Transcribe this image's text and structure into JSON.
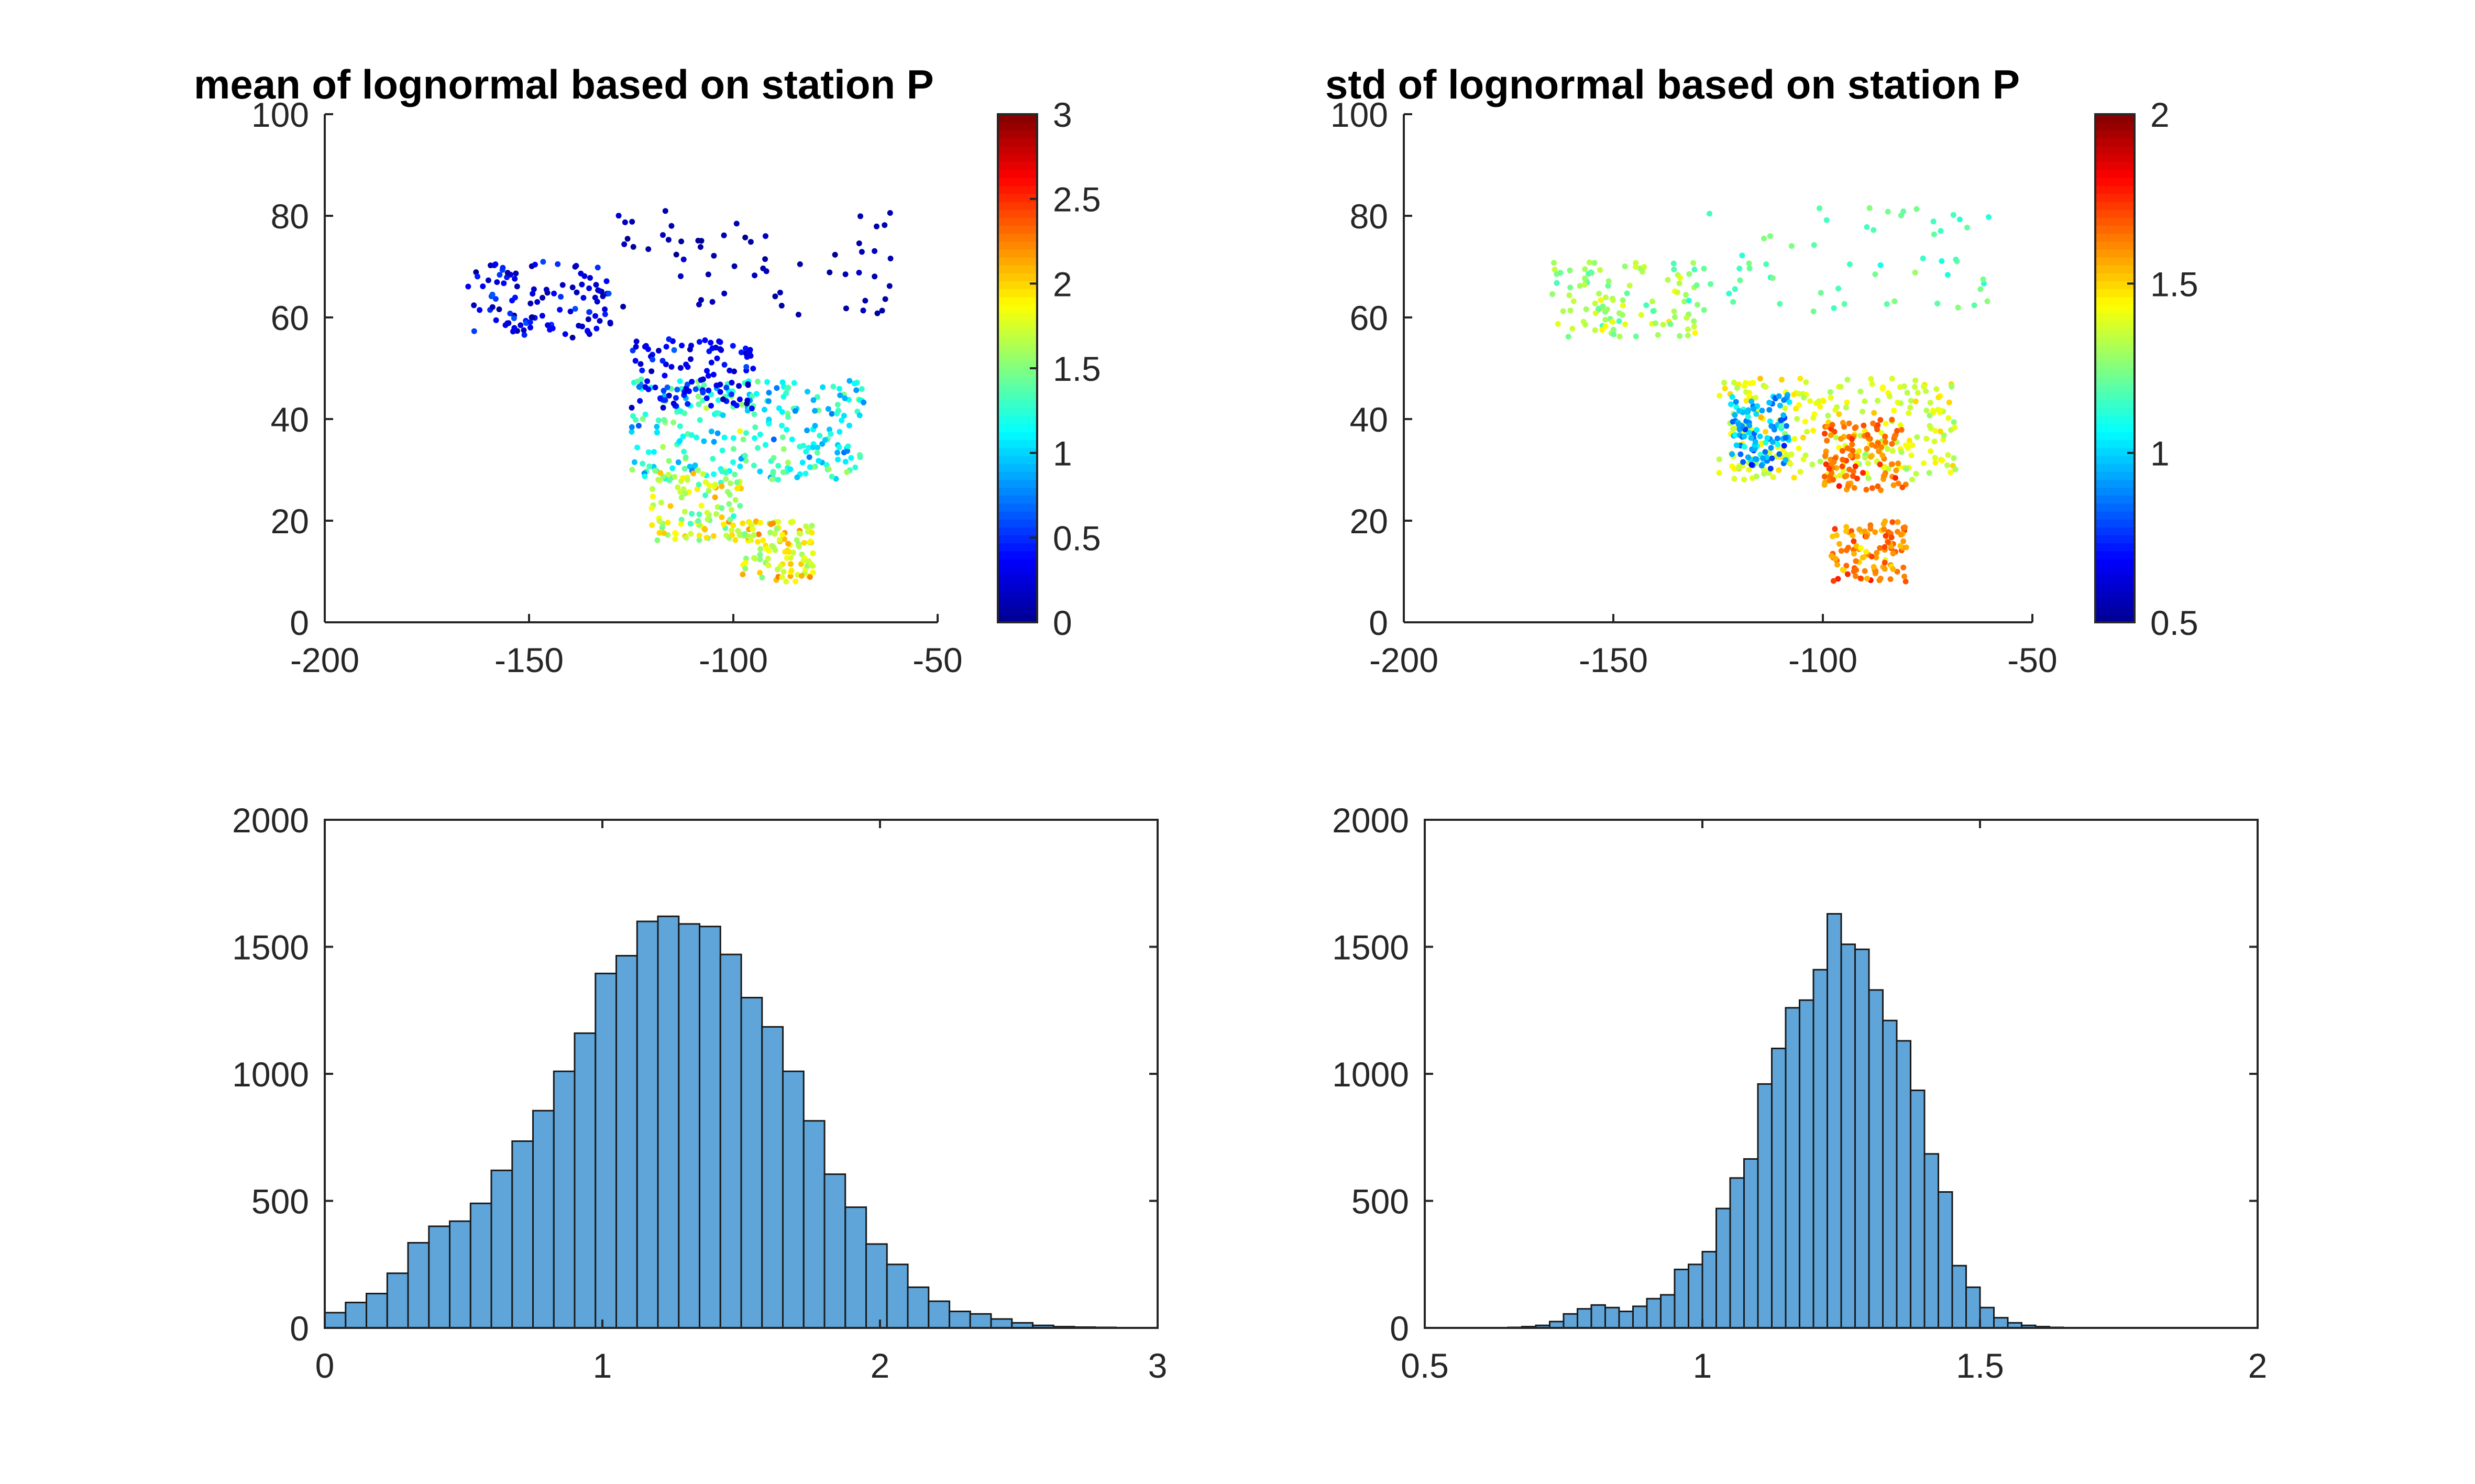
{
  "figure": {
    "colormap": "jet",
    "colormap_stops": [
      "#00008f",
      "#0000ff",
      "#0080ff",
      "#00ffff",
      "#80ff80",
      "#ffff00",
      "#ff8000",
      "#ff0000",
      "#800000"
    ],
    "bar_fill": "#5fa5d9",
    "bar_edge": "#1a1a1a"
  },
  "chart_data": [
    {
      "type": "scatter",
      "title": "mean of lognormal based on station P",
      "xlim": [
        -200,
        -50
      ],
      "ylim": [
        0,
        100
      ],
      "xticks": [
        -200,
        -150,
        -100,
        -50
      ],
      "yticks": [
        0,
        20,
        40,
        60,
        80,
        100
      ],
      "colorbar": {
        "colormap": "jet",
        "clim": [
          0,
          3
        ],
        "ticks": [
          0,
          0.5,
          1,
          1.5,
          2,
          2.5,
          3
        ],
        "tick_labels": [
          "0",
          "0.5",
          "1",
          "1.5",
          "2",
          "2.5",
          "3"
        ]
      },
      "grid": false,
      "points_description": "station locations over North America colored by value",
      "clusters": [
        {
          "lon": [
            -125,
            -68
          ],
          "lat": [
            28,
            48
          ],
          "mean": 1.2,
          "spread": 0.45
        },
        {
          "lon": [
            -125,
            -95
          ],
          "lat": [
            42,
            56
          ],
          "mean": 0.35,
          "spread": 0.25
        },
        {
          "lon": [
            -120,
            -98
          ],
          "lat": [
            16,
            30
          ],
          "mean": 1.7,
          "spread": 0.45
        },
        {
          "lon": [
            -98,
            -80
          ],
          "lat": [
            8,
            20
          ],
          "mean": 1.8,
          "spread": 0.4
        },
        {
          "lon": [
            -165,
            -130
          ],
          "lat": [
            56,
            71
          ],
          "mean": 0.3,
          "spread": 0.3
        },
        {
          "lon": [
            -130,
            -60
          ],
          "lat": [
            60,
            82
          ],
          "mean": 0.1,
          "spread": 0.1
        }
      ]
    },
    {
      "type": "scatter",
      "title": "std of lognormal based on station P",
      "xlim": [
        -200,
        -50
      ],
      "ylim": [
        0,
        100
      ],
      "xticks": [
        -200,
        -150,
        -100,
        -50
      ],
      "yticks": [
        0,
        20,
        40,
        60,
        80,
        100
      ],
      "colorbar": {
        "colormap": "jet",
        "clim": [
          0.5,
          2
        ],
        "ticks": [
          0.5,
          1,
          1.5,
          2
        ],
        "tick_labels": [
          "0.5",
          "1",
          "1.5",
          "2"
        ]
      },
      "grid": false,
      "clusters": [
        {
          "lon": [
            -125,
            -68
          ],
          "lat": [
            28,
            48
          ],
          "mean": 1.4,
          "spread": 0.12
        },
        {
          "lon": [
            -100,
            -80
          ],
          "lat": [
            26,
            40
          ],
          "mean": 1.65,
          "spread": 0.1
        },
        {
          "lon": [
            -122,
            -108
          ],
          "lat": [
            30,
            45
          ],
          "mean": 0.95,
          "spread": 0.2
        },
        {
          "lon": [
            -98,
            -80
          ],
          "lat": [
            8,
            20
          ],
          "mean": 1.6,
          "spread": 0.15
        },
        {
          "lon": [
            -165,
            -130
          ],
          "lat": [
            56,
            71
          ],
          "mean": 1.3,
          "spread": 0.15
        },
        {
          "lon": [
            -130,
            -60
          ],
          "lat": [
            60,
            82
          ],
          "mean": 1.2,
          "spread": 0.1
        }
      ]
    },
    {
      "type": "bar",
      "subtype": "histogram",
      "xlim": [
        0,
        3
      ],
      "ylim": [
        0,
        2000
      ],
      "xticks": [
        0,
        1,
        2,
        3
      ],
      "yticks": [
        0,
        500,
        1000,
        1500,
        2000
      ],
      "bin_start": 0,
      "bin_width": 0.075,
      "values": [
        60,
        100,
        135,
        215,
        335,
        400,
        420,
        490,
        620,
        735,
        855,
        1010,
        1160,
        1395,
        1465,
        1600,
        1620,
        1590,
        1580,
        1470,
        1300,
        1185,
        1010,
        815,
        605,
        475,
        330,
        250,
        160,
        105,
        65,
        55,
        35,
        20,
        10,
        5,
        3,
        2,
        1,
        0
      ]
    },
    {
      "type": "bar",
      "subtype": "histogram",
      "xlim": [
        0.5,
        2
      ],
      "ylim": [
        0,
        2000
      ],
      "xticks": [
        0.5,
        1,
        1.5,
        2
      ],
      "yticks": [
        0,
        500,
        1000,
        1500,
        2000
      ],
      "bin_start": 0.5,
      "bin_width": 0.025,
      "values": [
        0,
        0,
        0,
        0,
        0,
        0,
        2,
        5,
        10,
        25,
        55,
        75,
        90,
        80,
        65,
        85,
        115,
        130,
        230,
        250,
        300,
        470,
        590,
        665,
        960,
        1100,
        1260,
        1290,
        1410,
        1630,
        1510,
        1490,
        1330,
        1210,
        1130,
        935,
        685,
        535,
        245,
        160,
        80,
        40,
        20,
        10,
        5,
        2,
        0,
        0,
        0,
        0
      ]
    }
  ]
}
